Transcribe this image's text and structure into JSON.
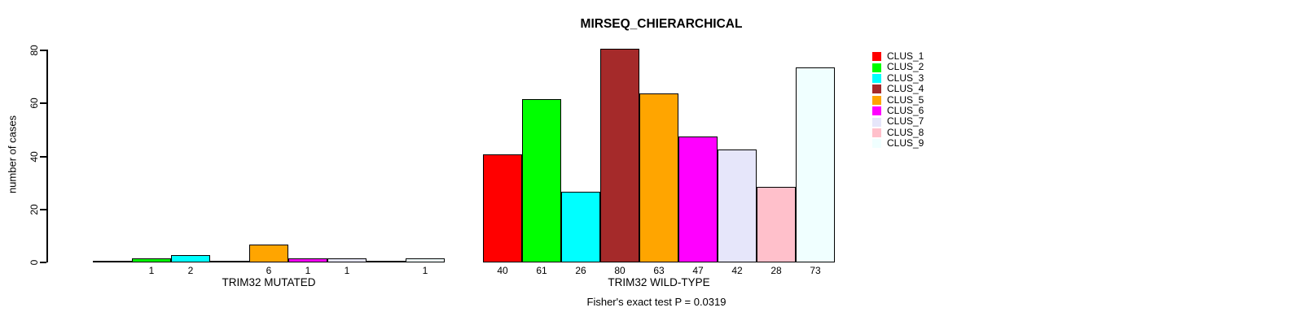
{
  "title": "MIRSEQ_CHIERARCHICAL",
  "ylabel": "number of cases",
  "footer": "Fisher's exact test P = 0.0319",
  "chart_data": {
    "type": "bar",
    "categories": [
      "CLUS_1",
      "CLUS_2",
      "CLUS_3",
      "CLUS_4",
      "CLUS_5",
      "CLUS_6",
      "CLUS_7",
      "CLUS_8",
      "CLUS_9"
    ],
    "colors": [
      "#FF0000",
      "#00FF00",
      "#00FFFF",
      "#A52A2A",
      "#FFA500",
      "#FF00FF",
      "#E6E6FA",
      "#FFC0CB",
      "#F0FFFF"
    ],
    "series": [
      {
        "name": "TRIM32 MUTATED",
        "values": [
          0,
          1,
          2,
          0,
          6,
          1,
          1,
          0,
          1
        ]
      },
      {
        "name": "TRIM32 WILD-TYPE",
        "values": [
          40,
          61,
          26,
          80,
          63,
          47,
          42,
          28,
          73
        ]
      }
    ],
    "title": "MIRSEQ_CHIERARCHICAL",
    "xlabel_groups": [
      "TRIM32 MUTATED",
      "TRIM32 WILD-TYPE"
    ],
    "ylabel": "number of cases",
    "ylim": [
      0,
      80
    ],
    "yticks": [
      0,
      20,
      40,
      60,
      80
    ],
    "bar_value_labels": true,
    "zero_values_drawn_as_flat_line": true,
    "grid": false,
    "legend_position": "right",
    "legend_items": [
      "CLUS_1",
      "CLUS_2",
      "CLUS_3",
      "CLUS_4",
      "CLUS_5",
      "CLUS_6",
      "CLUS_7",
      "CLUS_8",
      "CLUS_9"
    ],
    "annotation": "Fisher's exact test P = 0.0319"
  },
  "colors": {
    "axis": "#000000",
    "text": "#000000",
    "background": "#FFFFFF"
  }
}
